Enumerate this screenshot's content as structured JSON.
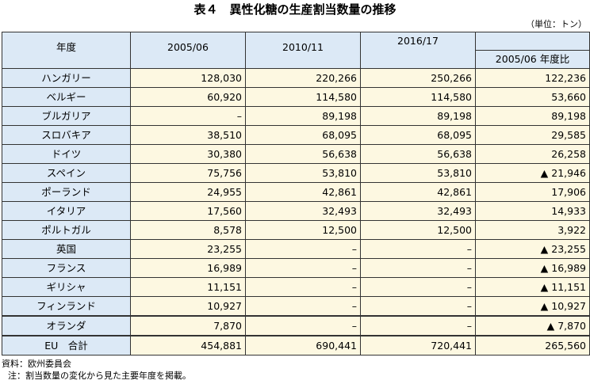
{
  "title": "表４　異性化糖の生産割当数量の推移",
  "unit": "（単位：トン）",
  "headers": {
    "year": "年度",
    "c1": "2005/06",
    "c2": "2010/11",
    "c3": "2016/17",
    "c4": "2005/06 年度比"
  },
  "rows": [
    {
      "country": "ハンガリー",
      "v1": "128,030",
      "v2": "220,266",
      "v3": "250,266",
      "v4": "122,236"
    },
    {
      "country": "ベルギー",
      "v1": "60,920",
      "v2": "114,580",
      "v3": "114,580",
      "v4": "53,660"
    },
    {
      "country": "ブルガリア",
      "v1": "–",
      "v2": "89,198",
      "v3": "89,198",
      "v4": "89,198"
    },
    {
      "country": "スロバキア",
      "v1": "38,510",
      "v2": "68,095",
      "v3": "68,095",
      "v4": "29,585"
    },
    {
      "country": "ドイツ",
      "v1": "30,380",
      "v2": "56,638",
      "v3": "56,638",
      "v4": "26,258"
    },
    {
      "country": "スペイン",
      "v1": "75,756",
      "v2": "53,810",
      "v3": "53,810",
      "v4": "▲ 21,946"
    },
    {
      "country": "ポーランド",
      "v1": "24,955",
      "v2": "42,861",
      "v3": "42,861",
      "v4": "17,906"
    },
    {
      "country": "イタリア",
      "v1": "17,560",
      "v2": "32,493",
      "v3": "32,493",
      "v4": "14,933"
    },
    {
      "country": "ポルトガル",
      "v1": "8,578",
      "v2": "12,500",
      "v3": "12,500",
      "v4": "3,922"
    },
    {
      "country": "英国",
      "v1": "23,255",
      "v2": "–",
      "v3": "–",
      "v4": "▲ 23,255"
    },
    {
      "country": "フランス",
      "v1": "16,989",
      "v2": "–",
      "v3": "–",
      "v4": "▲ 16,989"
    },
    {
      "country": "ギリシャ",
      "v1": "11,151",
      "v2": "–",
      "v3": "–",
      "v4": "▲ 11,151"
    },
    {
      "country": "フィンランド",
      "v1": "10,927",
      "v2": "–",
      "v3": "–",
      "v4": "▲ 10,927"
    },
    {
      "country": "オランダ",
      "v1": "7,870",
      "v2": "–",
      "v3": "–",
      "v4": "▲ 7,870"
    }
  ],
  "total": {
    "country": "EU　合計",
    "v1": "454,881",
    "v2": "690,441",
    "v3": "720,441",
    "v4": "265,560"
  },
  "notes": {
    "source": "資料：欧州委員会",
    "note": "注：割当数量の変化から見た主要年度を掲載。"
  },
  "colors": {
    "header_bg": "#dce9f6",
    "cell_bg": "#fdf8e1",
    "border": "#333333"
  }
}
